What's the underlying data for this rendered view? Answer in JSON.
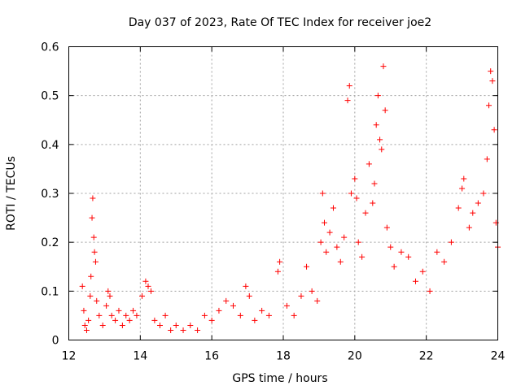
{
  "chart_data": {
    "type": "scatter",
    "title": "Day 037 of 2023, Rate Of TEC Index for receiver joe2",
    "xlabel": "GPS time / hours",
    "ylabel": "ROTI / TECUs",
    "xlim": [
      12,
      24
    ],
    "ylim": [
      0,
      0.6
    ],
    "x_ticks": [
      12,
      14,
      16,
      18,
      20,
      22,
      24
    ],
    "y_ticks": [
      0,
      0.1,
      0.2,
      0.3,
      0.4,
      0.5,
      0.6
    ],
    "x_tick_labels": [
      "12",
      "14",
      "16",
      "18",
      "20",
      "22",
      "24"
    ],
    "y_tick_labels": [
      "0",
      "0.1",
      "0.2",
      "0.3",
      "0.4",
      "0.5",
      "0.6"
    ],
    "grid": true,
    "marker": "+",
    "color": "#ff0000",
    "series": [
      {
        "name": "ROTI",
        "points": [
          [
            12.38,
            0.11
          ],
          [
            12.42,
            0.06
          ],
          [
            12.45,
            0.03
          ],
          [
            12.5,
            0.02
          ],
          [
            12.55,
            0.04
          ],
          [
            12.6,
            0.09
          ],
          [
            12.62,
            0.13
          ],
          [
            12.65,
            0.25
          ],
          [
            12.67,
            0.29
          ],
          [
            12.7,
            0.21
          ],
          [
            12.72,
            0.18
          ],
          [
            12.75,
            0.16
          ],
          [
            12.78,
            0.08
          ],
          [
            12.85,
            0.05
          ],
          [
            12.95,
            0.03
          ],
          [
            13.05,
            0.07
          ],
          [
            13.1,
            0.1
          ],
          [
            13.15,
            0.09
          ],
          [
            13.2,
            0.05
          ],
          [
            13.3,
            0.04
          ],
          [
            13.4,
            0.06
          ],
          [
            13.5,
            0.03
          ],
          [
            13.6,
            0.05
          ],
          [
            13.7,
            0.04
          ],
          [
            13.8,
            0.06
          ],
          [
            13.9,
            0.05
          ],
          [
            14.05,
            0.09
          ],
          [
            14.15,
            0.12
          ],
          [
            14.22,
            0.11
          ],
          [
            14.3,
            0.1
          ],
          [
            14.4,
            0.04
          ],
          [
            14.55,
            0.03
          ],
          [
            14.7,
            0.05
          ],
          [
            14.85,
            0.02
          ],
          [
            15.0,
            0.03
          ],
          [
            15.2,
            0.02
          ],
          [
            15.4,
            0.03
          ],
          [
            15.6,
            0.02
          ],
          [
            15.8,
            0.05
          ],
          [
            16.0,
            0.04
          ],
          [
            16.2,
            0.06
          ],
          [
            16.4,
            0.08
          ],
          [
            16.6,
            0.07
          ],
          [
            16.8,
            0.05
          ],
          [
            16.95,
            0.11
          ],
          [
            17.05,
            0.09
          ],
          [
            17.2,
            0.04
          ],
          [
            17.4,
            0.06
          ],
          [
            17.6,
            0.05
          ],
          [
            17.85,
            0.14
          ],
          [
            17.9,
            0.16
          ],
          [
            18.1,
            0.07
          ],
          [
            18.3,
            0.05
          ],
          [
            18.5,
            0.09
          ],
          [
            18.65,
            0.15
          ],
          [
            18.8,
            0.1
          ],
          [
            18.95,
            0.08
          ],
          [
            19.05,
            0.2
          ],
          [
            19.1,
            0.3
          ],
          [
            19.15,
            0.24
          ],
          [
            19.2,
            0.18
          ],
          [
            19.3,
            0.22
          ],
          [
            19.4,
            0.27
          ],
          [
            19.5,
            0.19
          ],
          [
            19.6,
            0.16
          ],
          [
            19.7,
            0.21
          ],
          [
            19.8,
            0.49
          ],
          [
            19.85,
            0.52
          ],
          [
            19.9,
            0.3
          ],
          [
            20.0,
            0.33
          ],
          [
            20.05,
            0.29
          ],
          [
            20.1,
            0.2
          ],
          [
            20.2,
            0.17
          ],
          [
            20.3,
            0.26
          ],
          [
            20.4,
            0.36
          ],
          [
            20.5,
            0.28
          ],
          [
            20.55,
            0.32
          ],
          [
            20.6,
            0.44
          ],
          [
            20.65,
            0.5
          ],
          [
            20.7,
            0.41
          ],
          [
            20.75,
            0.39
          ],
          [
            20.8,
            0.56
          ],
          [
            20.85,
            0.47
          ],
          [
            20.9,
            0.23
          ],
          [
            21.0,
            0.19
          ],
          [
            21.1,
            0.15
          ],
          [
            21.3,
            0.18
          ],
          [
            21.5,
            0.17
          ],
          [
            21.7,
            0.12
          ],
          [
            21.9,
            0.14
          ],
          [
            22.1,
            0.1
          ],
          [
            22.3,
            0.18
          ],
          [
            22.5,
            0.16
          ],
          [
            22.7,
            0.2
          ],
          [
            22.9,
            0.27
          ],
          [
            23.0,
            0.31
          ],
          [
            23.05,
            0.33
          ],
          [
            23.2,
            0.23
          ],
          [
            23.3,
            0.26
          ],
          [
            23.45,
            0.28
          ],
          [
            23.6,
            0.3
          ],
          [
            23.7,
            0.37
          ],
          [
            23.75,
            0.48
          ],
          [
            23.8,
            0.55
          ],
          [
            23.85,
            0.53
          ],
          [
            23.9,
            0.43
          ],
          [
            23.95,
            0.24
          ],
          [
            24.0,
            0.19
          ]
        ]
      }
    ]
  }
}
